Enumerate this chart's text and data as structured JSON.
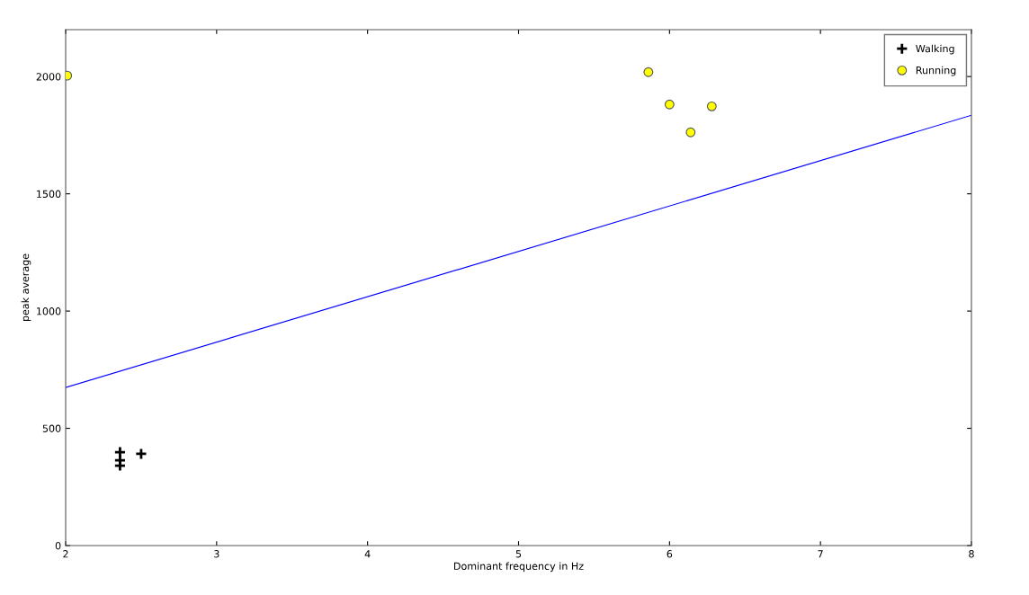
{
  "chart_data": {
    "type": "scatter",
    "xlabel": "Dominant frequency in Hz",
    "ylabel": "peak average",
    "xlim": [
      2,
      8
    ],
    "ylim": [
      0,
      2200
    ],
    "xticks": [
      2,
      3,
      4,
      5,
      6,
      7,
      8
    ],
    "yticks": [
      0,
      500,
      1000,
      1500,
      2000
    ],
    "grid": false,
    "legend": "top right",
    "series": [
      {
        "name": "Walking",
        "color": "#000000",
        "marker": "cross",
        "x": [
          2.36,
          2.36,
          2.36,
          2.5
        ],
        "values": [
          398,
          364,
          341,
          391
        ]
      },
      {
        "name": "Running",
        "color": "#ffff00",
        "marker": "circle",
        "x": [
          2.01,
          5.86,
          6.0,
          6.14,
          6.28
        ],
        "values": [
          2004,
          2019,
          1881,
          1762,
          1873
        ]
      },
      {
        "type": "line",
        "color": "#0000ff",
        "marker": "none",
        "x": [
          2,
          8
        ],
        "values": [
          674,
          1835
        ]
      }
    ]
  }
}
